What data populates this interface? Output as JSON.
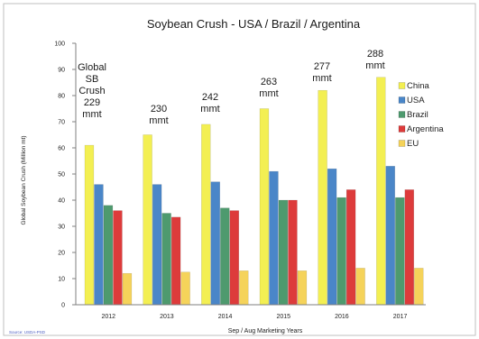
{
  "chart_data": {
    "type": "bar",
    "title": "Soybean Crush - USA / Brazil / Argentina",
    "xlabel": "Sep / Aug Marketing Years",
    "ylabel": "Global Soybean Crush (Million mt)",
    "ylim": [
      0,
      100
    ],
    "yticks": [
      0,
      10,
      20,
      30,
      40,
      50,
      60,
      70,
      80,
      90,
      100
    ],
    "grid": false,
    "legend_position": "right",
    "categories": [
      "2012",
      "2013",
      "2014",
      "2015",
      "2016",
      "2017"
    ],
    "series": [
      {
        "name": "China",
        "color": "#f3ef52",
        "values": [
          61,
          65,
          69,
          75,
          82,
          87
        ]
      },
      {
        "name": "USA",
        "color": "#4a86c8",
        "values": [
          46,
          46,
          47,
          51,
          52,
          53
        ]
      },
      {
        "name": "Brazil",
        "color": "#4e9a6e",
        "values": [
          38,
          35,
          37,
          40,
          41,
          41
        ]
      },
      {
        "name": "Argentina",
        "color": "#dd3b3b",
        "values": [
          36,
          33.5,
          36,
          40,
          44,
          44
        ]
      },
      {
        "name": "EU",
        "color": "#f5d35a",
        "values": [
          12,
          12.5,
          13,
          13,
          14,
          14
        ]
      }
    ],
    "annotations": [
      {
        "category": "2012",
        "lines": [
          "Global",
          "SB",
          "Crush",
          "229",
          "mmt"
        ]
      },
      {
        "category": "2013",
        "lines": [
          "230",
          "mmt"
        ]
      },
      {
        "category": "2014",
        "lines": [
          "242",
          "mmt"
        ]
      },
      {
        "category": "2015",
        "lines": [
          "263",
          "mmt"
        ]
      },
      {
        "category": "2016",
        "lines": [
          "277",
          "mmt"
        ]
      },
      {
        "category": "2017",
        "lines": [
          "288",
          "mmt"
        ]
      }
    ],
    "source": "Source: USDA-PSD"
  }
}
